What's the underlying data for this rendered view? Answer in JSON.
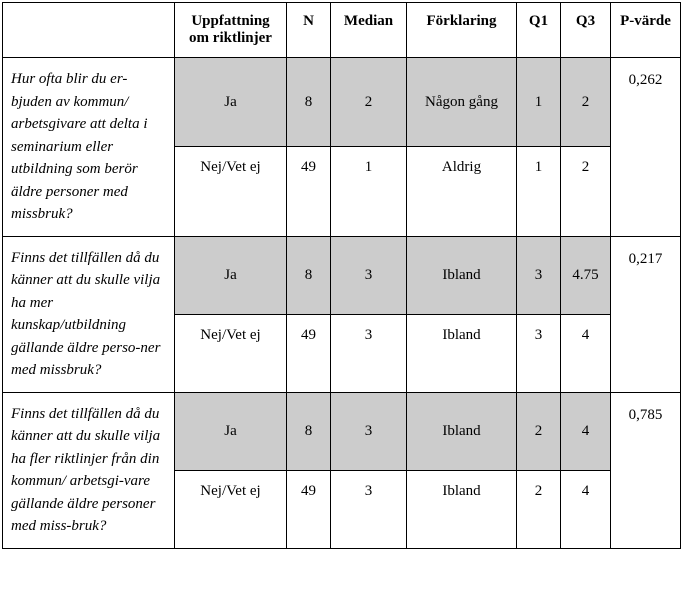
{
  "headers": {
    "empty": "",
    "uppfattning": "Uppfattning om riktlinjer",
    "n": "N",
    "median": "Median",
    "forklaring": "Förklaring",
    "q1": "Q1",
    "q3": "Q3",
    "pvarde": "P-värde"
  },
  "rows": [
    {
      "question": "Hur ofta blir du er-bjuden av kommun/ arbetsgivare att delta i seminarium eller utbildning som berör äldre personer med missbruk?",
      "ja": {
        "label": "Ja",
        "n": "8",
        "median": "2",
        "forklaring": "Någon gång",
        "q1": "1",
        "q3": "2"
      },
      "nej": {
        "label": "Nej/Vet ej",
        "n": "49",
        "median": "1",
        "forklaring": "Aldrig",
        "q1": "1",
        "q3": "2"
      },
      "p": "0,262"
    },
    {
      "question": "Finns det tillfällen då du känner att du skulle vilja ha mer kunskap/utbildning gällande äldre perso-ner med missbruk?",
      "ja": {
        "label": "Ja",
        "n": "8",
        "median": "3",
        "forklaring": "Ibland",
        "q1": "3",
        "q3": "4.75"
      },
      "nej": {
        "label": "Nej/Vet ej",
        "n": "49",
        "median": "3",
        "forklaring": "Ibland",
        "q1": "3",
        "q3": "4"
      },
      "p": "0,217"
    },
    {
      "question": "Finns det tillfällen då du känner att du skulle vilja ha fler riktlinjer från din kommun/ arbetsgi-vare gällande äldre personer med miss-bruk?",
      "ja": {
        "label": "Ja",
        "n": "8",
        "median": "3",
        "forklaring": "Ibland",
        "q1": "2",
        "q3": "4"
      },
      "nej": {
        "label": "Nej/Vet ej",
        "n": "49",
        "median": "3",
        "forklaring": "Ibland",
        "q1": "2",
        "q3": "4"
      },
      "p": "0,785"
    }
  ]
}
